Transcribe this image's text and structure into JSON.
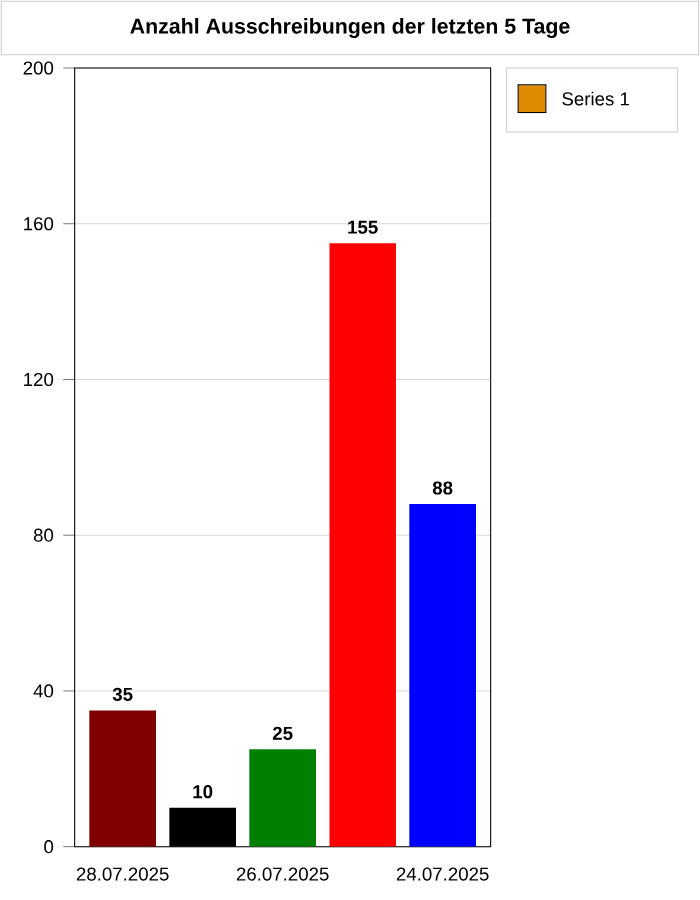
{
  "chart_data": {
    "type": "bar",
    "title": "Anzahl Ausschreibungen der letzten 5 Tage",
    "categories": [
      "28.07.2025",
      null,
      "26.07.2025",
      null,
      "24.07.2025"
    ],
    "series": [
      {
        "name": "Series 1",
        "color": "#e08a00",
        "colors": [
          "#800000",
          "#000000",
          "#008000",
          "#ff0000",
          "#0000ff"
        ],
        "values": [
          35,
          10,
          25,
          155,
          88
        ]
      }
    ],
    "ylim": [
      0,
      200
    ],
    "yticks": [
      0,
      40,
      80,
      120,
      160,
      200
    ],
    "grid": "y",
    "legend": "top right",
    "data_labels": true
  }
}
